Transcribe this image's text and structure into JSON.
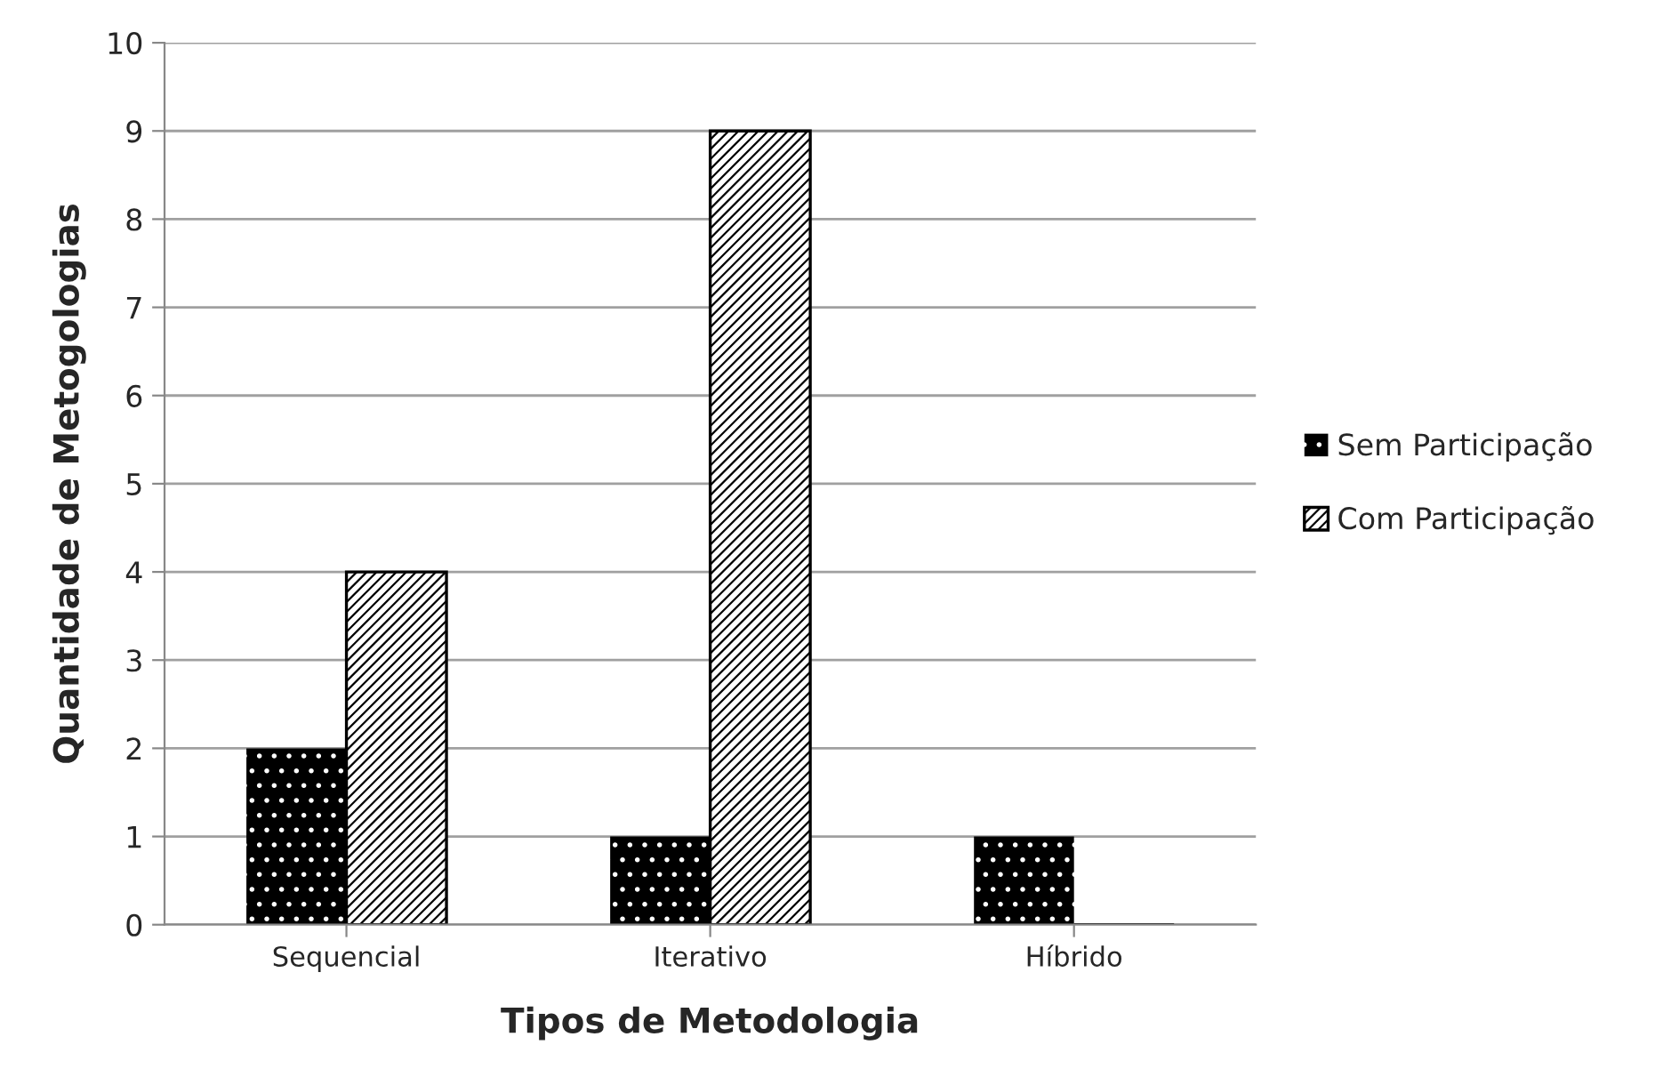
{
  "chart_data": {
    "type": "bar",
    "xlabel": "Tipos de Metodologia",
    "ylabel": "Quantidade de Metogologias",
    "categories": [
      "Sequencial",
      "Iterativo",
      "Híbrido"
    ],
    "series": [
      {
        "name": "Sem Participação",
        "color": "#000000",
        "values": [
          2,
          1,
          1
        ]
      },
      {
        "name": "Com Participação",
        "color": "#000000",
        "values": [
          4,
          9,
          0
        ]
      }
    ],
    "ylim": [
      0,
      10
    ],
    "yticks": [
      0,
      1,
      2,
      3,
      4,
      5,
      6,
      7,
      8,
      9,
      10
    ],
    "grid": "y",
    "legend": "right"
  }
}
